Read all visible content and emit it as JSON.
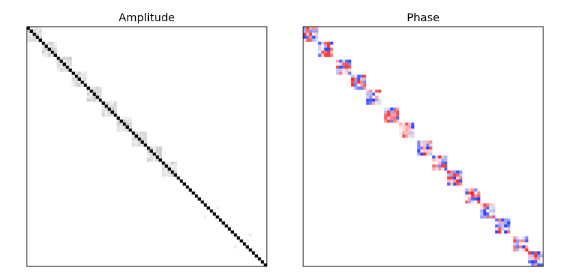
{
  "chart_data": [
    {
      "type": "heatmap",
      "title": "Amplitude",
      "xlabel": "",
      "ylabel": "",
      "n": 80,
      "block_size": 5,
      "block_count": 10,
      "colormap": "greys",
      "colors": {
        "low": "#ffffff",
        "high": "#000000",
        "frame": "#000000"
      },
      "diagonal_value": 1.0,
      "block_value_range": [
        0.05,
        0.2
      ],
      "isolated_cells": [
        {
          "row": 60,
          "col": 63,
          "value": 0.06
        },
        {
          "row": 63,
          "col": 59,
          "value": 0.05
        },
        {
          "row": 69,
          "col": 74,
          "value": 0.07
        },
        {
          "row": 73,
          "col": 69,
          "value": 0.06
        },
        {
          "row": 71,
          "col": 73,
          "value": 0.06
        }
      ],
      "grid": false
    },
    {
      "type": "heatmap",
      "title": "Phase",
      "xlabel": "",
      "ylabel": "",
      "n": 80,
      "block_size": 5,
      "block_count": 15,
      "colormap": "bwr",
      "colors": {
        "negative": "#1f3fff",
        "zero": "#ffffff",
        "positive": "#ff1f1f",
        "frame": "#000000"
      },
      "value_range": [
        -3.14,
        3.14
      ],
      "grid": false
    }
  ]
}
